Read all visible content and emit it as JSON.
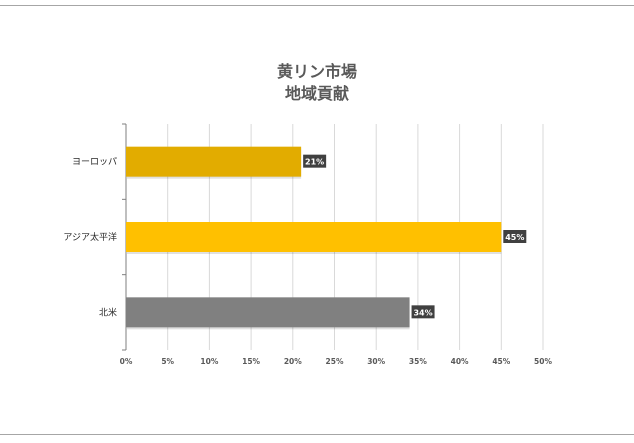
{
  "chart_data": {
    "type": "bar",
    "orientation": "horizontal",
    "title_line1": "黄リン市場",
    "title_line2": "地域貢献",
    "categories": [
      "ヨーロッパ",
      "アジア太平洋",
      "北米"
    ],
    "values": [
      21,
      45,
      34
    ],
    "data_labels": [
      "21%",
      "45%",
      "34%"
    ],
    "bar_colors": [
      "#E2AC00",
      "#FFC000",
      "#808080"
    ],
    "xlim": [
      0,
      50
    ],
    "x_ticks": [
      "0%",
      "5%",
      "10%",
      "15%",
      "20%",
      "25%",
      "30%",
      "35%",
      "40%",
      "45%",
      "50%"
    ],
    "grid": true,
    "legend": "none"
  }
}
